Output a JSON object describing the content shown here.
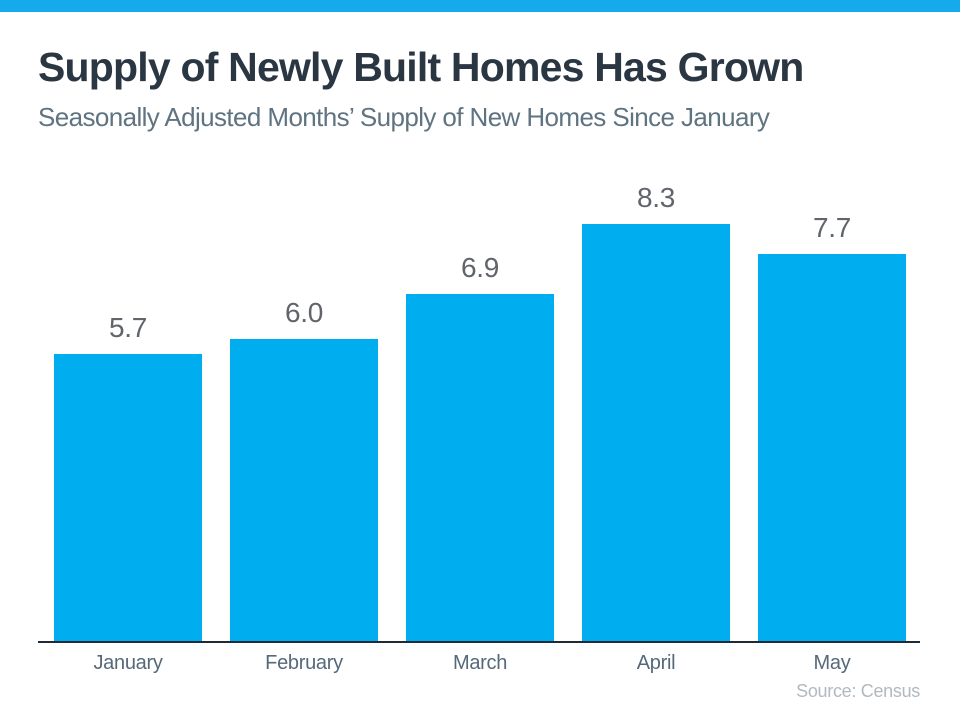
{
  "header": {
    "title": "Supply of Newly Built Homes Has Grown",
    "subtitle": "Seasonally Adjusted Months’ Supply of New Homes Since January"
  },
  "chart_data": {
    "type": "bar",
    "title": "Supply of Newly Built Homes Has Grown",
    "subtitle": "Seasonally Adjusted Months’ Supply of New Homes Since January",
    "categories": [
      "January",
      "February",
      "March",
      "April",
      "May"
    ],
    "values": [
      5.7,
      6.0,
      6.9,
      8.3,
      7.7
    ],
    "value_labels": [
      "5.7",
      "6.0",
      "6.9",
      "8.3",
      "7.7"
    ],
    "xlabel": "",
    "ylabel": "",
    "ylim": [
      0,
      9
    ],
    "grid": false,
    "legend": false,
    "bar_color": "#00AEEF",
    "accent_color": "#14AAEB",
    "axis_color": "#1E2A36",
    "value_label_color": "#60656B",
    "tick_label_color": "#56697A"
  },
  "footer": {
    "source": "Source: Census"
  }
}
